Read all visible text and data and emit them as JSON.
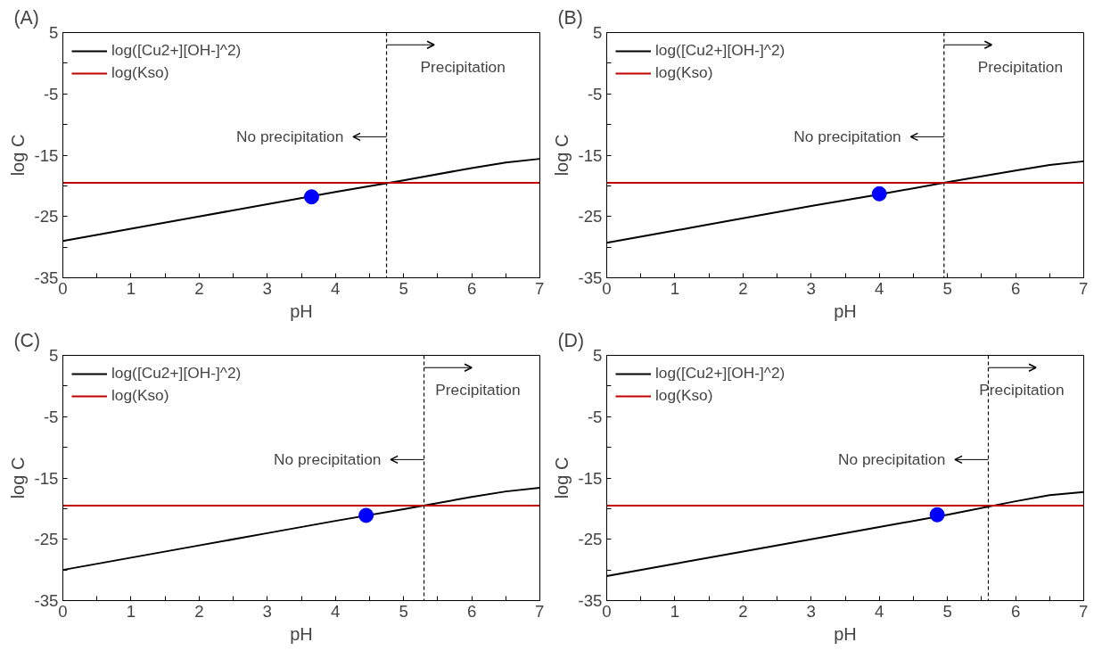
{
  "chart_data": [
    {
      "type": "line",
      "title": "(A)",
      "xlabel": "pH",
      "ylabel": "log C",
      "xlim": [
        0,
        7
      ],
      "ylim": [
        -35,
        5
      ],
      "xticks": [
        0,
        {
          "value": 0.5,
          "label": null
        },
        1,
        {
          "value": 1.5,
          "label": null
        },
        2,
        {
          "value": 2.5,
          "label": null
        },
        3,
        {
          "value": 3.5,
          "label": null
        },
        4,
        {
          "value": 4.5,
          "label": null
        },
        5,
        {
          "value": 5.5,
          "label": null
        },
        6,
        {
          "value": 6.5,
          "label": null
        },
        7
      ],
      "yticks": [
        -35,
        {
          "value": -30,
          "label": null
        },
        -25,
        {
          "value": -20,
          "label": null
        },
        -15,
        {
          "value": -10,
          "label": null
        },
        -5,
        {
          "value": 0,
          "label": null
        },
        5
      ],
      "legend": "top left",
      "grid": false,
      "series": [
        {
          "name": "log([Cu2+][OH-]^2)",
          "color": "#000000",
          "x": [
            0,
            1,
            2,
            3,
            4,
            5,
            6,
            6.5,
            7
          ],
          "values": [
            -29,
            -27,
            -25,
            -23,
            -21,
            -19.1,
            -17.1,
            -16.2,
            -15.6
          ]
        },
        {
          "name": "log(Kso)",
          "color": "#c00000",
          "x": [
            0,
            7
          ],
          "values": [
            -19.5,
            -19.5
          ]
        },
        {
          "type": "scatter",
          "marker": "circle",
          "color": "#0000ff",
          "x": [
            3.65
          ],
          "values": [
            -21.8
          ]
        }
      ],
      "ref_lines": [
        {
          "axis": "x",
          "value": 4.75,
          "line_style": "dashed",
          "color": "#000000"
        }
      ],
      "annotations": [
        {
          "text": "Precipitation",
          "x": 4.75,
          "y": 3
        },
        {
          "text": "No precipitation",
          "x": 4.75,
          "y": -12
        }
      ]
    },
    {
      "type": "line",
      "title": "(B)",
      "xlabel": "pH",
      "ylabel": "log C",
      "xlim": [
        0,
        7
      ],
      "ylim": [
        -35,
        5
      ],
      "xticks": [
        0,
        {
          "value": 0.5,
          "label": null
        },
        1,
        {
          "value": 1.5,
          "label": null
        },
        2,
        {
          "value": 2.5,
          "label": null
        },
        3,
        {
          "value": 3.5,
          "label": null
        },
        4,
        {
          "value": 4.5,
          "label": null
        },
        5,
        {
          "value": 5.5,
          "label": null
        },
        6,
        {
          "value": 6.5,
          "label": null
        },
        7
      ],
      "yticks": [
        -35,
        {
          "value": -30,
          "label": null
        },
        -25,
        {
          "value": -20,
          "label": null
        },
        -15,
        {
          "value": -10,
          "label": null
        },
        -5,
        {
          "value": 0,
          "label": null
        },
        5
      ],
      "legend": "top left",
      "grid": false,
      "series": [
        {
          "name": "log([Cu2+][OH-]^2)",
          "color": "#000000",
          "x": [
            0,
            1,
            2,
            3,
            4,
            5,
            6,
            6.5,
            7
          ],
          "values": [
            -29.3,
            -27.3,
            -25.3,
            -23.3,
            -21.4,
            -19.4,
            -17.5,
            -16.6,
            -16
          ]
        },
        {
          "name": "log(Kso)",
          "color": "#c00000",
          "x": [
            0,
            7
          ],
          "values": [
            -19.5,
            -19.5
          ]
        },
        {
          "type": "scatter",
          "marker": "circle",
          "color": "#0000ff",
          "x": [
            4.0
          ],
          "values": [
            -21.3
          ]
        }
      ],
      "ref_lines": [
        {
          "axis": "x",
          "value": 4.95,
          "line_style": "dashed",
          "color": "#000000"
        }
      ],
      "annotations": [
        {
          "text": "Precipitation",
          "x": 4.95,
          "y": 3
        },
        {
          "text": "No precipitation",
          "x": 4.95,
          "y": -12
        }
      ]
    },
    {
      "type": "line",
      "title": "(C)",
      "xlabel": "pH",
      "ylabel": "log C",
      "xlim": [
        0,
        7
      ],
      "ylim": [
        -35,
        5
      ],
      "xticks": [
        0,
        {
          "value": 0.5,
          "label": null
        },
        1,
        {
          "value": 1.5,
          "label": null
        },
        2,
        {
          "value": 2.5,
          "label": null
        },
        3,
        {
          "value": 3.5,
          "label": null
        },
        4,
        {
          "value": 4.5,
          "label": null
        },
        5,
        {
          "value": 5.5,
          "label": null
        },
        6,
        {
          "value": 6.5,
          "label": null
        },
        7
      ],
      "yticks": [
        -35,
        {
          "value": -30,
          "label": null
        },
        -25,
        {
          "value": -20,
          "label": null
        },
        -15,
        {
          "value": -10,
          "label": null
        },
        -5,
        {
          "value": 0,
          "label": null
        },
        5
      ],
      "legend": "top left",
      "grid": false,
      "series": [
        {
          "name": "log([Cu2+][OH-]^2)",
          "color": "#000000",
          "x": [
            0,
            1,
            2,
            3,
            4,
            5,
            6,
            6.5,
            7
          ],
          "values": [
            -30,
            -28,
            -26,
            -24,
            -22,
            -20.1,
            -18.1,
            -17.2,
            -16.6
          ]
        },
        {
          "name": "log(Kso)",
          "color": "#c00000",
          "x": [
            0,
            7
          ],
          "values": [
            -19.5,
            -19.5
          ]
        },
        {
          "type": "scatter",
          "marker": "circle",
          "color": "#0000ff",
          "x": [
            4.45
          ],
          "values": [
            -21.1
          ]
        }
      ],
      "ref_lines": [
        {
          "axis": "x",
          "value": 5.3,
          "line_style": "dashed",
          "color": "#000000"
        }
      ],
      "annotations": [
        {
          "text": "Precipitation",
          "x": 5.3,
          "y": 3
        },
        {
          "text": "No precipitation",
          "x": 5.3,
          "y": -12
        }
      ]
    },
    {
      "type": "line",
      "title": "(D)",
      "xlabel": "pH",
      "ylabel": "log C",
      "xlim": [
        0,
        7
      ],
      "ylim": [
        -35,
        5
      ],
      "xticks": [
        0,
        {
          "value": 0.5,
          "label": null
        },
        1,
        {
          "value": 1.5,
          "label": null
        },
        2,
        {
          "value": 2.5,
          "label": null
        },
        3,
        {
          "value": 3.5,
          "label": null
        },
        4,
        {
          "value": 4.5,
          "label": null
        },
        5,
        {
          "value": 5.5,
          "label": null
        },
        6,
        {
          "value": 6.5,
          "label": null
        },
        7
      ],
      "yticks": [
        -35,
        {
          "value": -30,
          "label": null
        },
        -25,
        {
          "value": -20,
          "label": null
        },
        -15,
        {
          "value": -10,
          "label": null
        },
        -5,
        {
          "value": 0,
          "label": null
        },
        5
      ],
      "legend": "top left",
      "grid": false,
      "series": [
        {
          "name": "log([Cu2+][OH-]^2)",
          "color": "#000000",
          "x": [
            0,
            1,
            2,
            3,
            4,
            5,
            6,
            6.5,
            7
          ],
          "values": [
            -31,
            -29,
            -27,
            -25,
            -23,
            -21,
            -18.8,
            -17.8,
            -17.3
          ]
        },
        {
          "name": "log(Kso)",
          "color": "#c00000",
          "x": [
            0,
            7
          ],
          "values": [
            -19.5,
            -19.5
          ]
        },
        {
          "type": "scatter",
          "marker": "circle",
          "color": "#0000ff",
          "x": [
            4.85
          ],
          "values": [
            -21
          ]
        }
      ],
      "ref_lines": [
        {
          "axis": "x",
          "value": 5.6,
          "line_style": "dashed",
          "color": "#000000"
        }
      ],
      "annotations": [
        {
          "text": "Precipitation",
          "x": 5.6,
          "y": 3
        },
        {
          "text": "No precipitation",
          "x": 5.6,
          "y": -12
        }
      ]
    }
  ]
}
